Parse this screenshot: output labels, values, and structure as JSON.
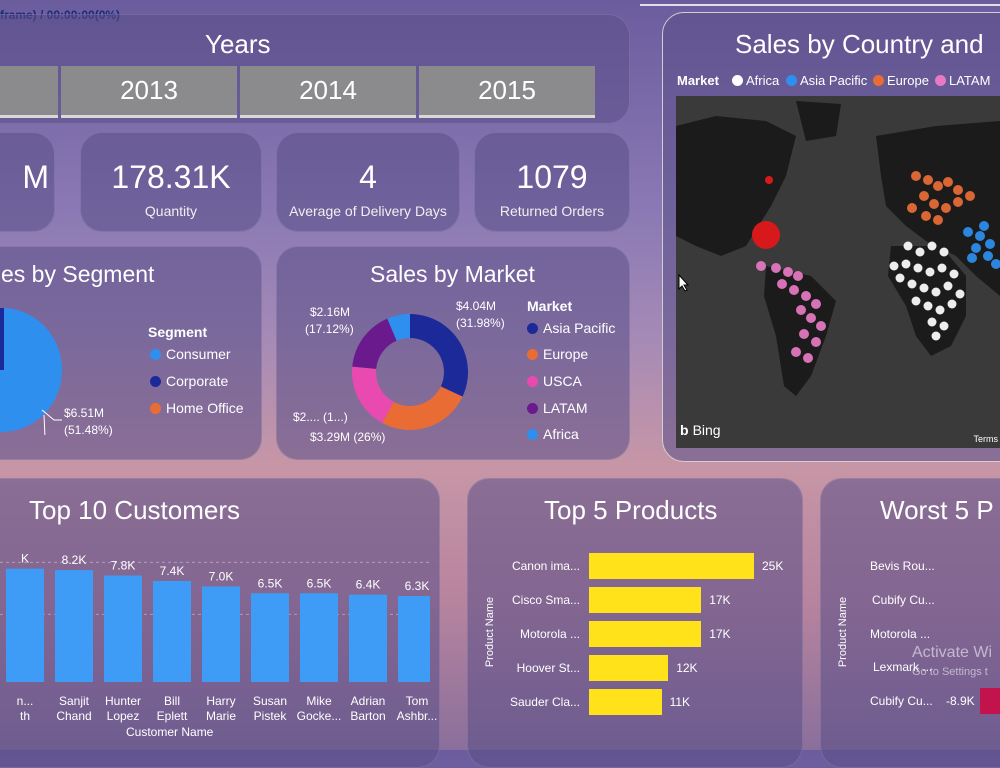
{
  "header": {
    "status_text": "frame) / 00:00:00(0%)"
  },
  "years": {
    "title": "Years",
    "items": [
      "2013",
      "2014",
      "2015"
    ]
  },
  "kpis": [
    {
      "value": "M",
      "label": ""
    },
    {
      "value": "178.31K",
      "label": "Quantity"
    },
    {
      "value": "4",
      "label": "Average of Delivery Days"
    },
    {
      "value": "1079",
      "label": "Returned Orders"
    }
  ],
  "segment": {
    "title": "es by Segment",
    "legend_title": "Segment",
    "items": [
      "Consumer",
      "Corporate",
      "Home Office"
    ],
    "colors": [
      "#2f8fef",
      "#1c2a99",
      "#e96c35"
    ],
    "data_label": "$6.51M",
    "data_pct": "(51.48%)"
  },
  "market": {
    "title": "Sales by Market",
    "legend_title": "Market",
    "items": [
      "Asia Pacific",
      "Europe",
      "USCA",
      "LATAM",
      "Africa"
    ],
    "colors": [
      "#1c2a99",
      "#e96c35",
      "#e84ab0",
      "#6a1a8c",
      "#2f8fef"
    ],
    "labels": [
      {
        "value": "$4.04M",
        "pct": "(31.98%)"
      },
      {
        "value": "$2.16M",
        "pct": "(17.12%)"
      },
      {
        "value": "$2.... (1...)",
        "pct": ""
      },
      {
        "value": "$3.29M (26%)",
        "pct": ""
      }
    ]
  },
  "map": {
    "title": "Sales by Country and",
    "legend_title": "Market",
    "items": [
      "Africa",
      "Asia Pacific",
      "Europe",
      "LATAM"
    ],
    "colors": [
      "#ffffff",
      "#2f8fef",
      "#e96c35",
      "#e87ac4"
    ],
    "bing_label": "Bing",
    "terms_label": "Terms"
  },
  "customers": {
    "title": "Top 10 Customers",
    "axis_title": "Customer Name",
    "bar_color": "#3e9cf6"
  },
  "products": {
    "title": "Top 5 Products",
    "axis_title": "Product Name",
    "bar_color": "#ffe21a"
  },
  "worst": {
    "title": "Worst 5 P",
    "axis_title": "Product Name",
    "names": [
      "Bevis Rou...",
      "Cubify Cu...",
      "Motorola ...",
      "Lexmark ...",
      "Cubify Cu..."
    ],
    "last_value": "-8.9K",
    "bar_color": "#c2134c"
  },
  "watermark": {
    "line1": "Activate Wi",
    "line2": "Go to Settings t"
  },
  "chart_data": [
    {
      "type": "bar",
      "title": "Top 10 Customers",
      "xlabel": "Customer Name",
      "categories": [
        "",
        "Sanjit Chand",
        "Hunter Lopez",
        "Bill Eplett",
        "Harry Marie",
        "Susan Pistek",
        "Mike Gocke...",
        "Adrian Barton",
        "Tom Ashbr..."
      ],
      "category_lines": [
        [
          "n...",
          "th"
        ],
        [
          "Sanjit",
          "Chand"
        ],
        [
          "Hunter",
          "Lopez"
        ],
        [
          "Bill",
          "Eplett"
        ],
        [
          "Harry",
          "Marie"
        ],
        [
          "Susan",
          "Pistek"
        ],
        [
          "Mike",
          "Gocke..."
        ],
        [
          "Adrian",
          "Barton"
        ],
        [
          "Tom",
          "Ashbr..."
        ]
      ],
      "values": [
        8.3,
        8.2,
        7.8,
        7.4,
        7.0,
        6.5,
        6.5,
        6.4,
        6.3
      ],
      "value_labels": [
        "K",
        "8.2K",
        "7.8K",
        "7.4K",
        "7.0K",
        "6.5K",
        "6.5K",
        "6.4K",
        "6.3K"
      ],
      "ylim": [
        0,
        10
      ]
    },
    {
      "type": "bar",
      "orientation": "horizontal",
      "title": "Top 5 Products",
      "ylabel": "Product Name",
      "categories": [
        "Canon ima...",
        "Cisco Sma...",
        "Motorola ...",
        "Hoover St...",
        "Sauder Cla..."
      ],
      "values": [
        25,
        17,
        17,
        12,
        11
      ],
      "value_labels": [
        "25K",
        "17K",
        "17K",
        "12K",
        "11K"
      ]
    },
    {
      "type": "pie",
      "title": "Sales by Market",
      "categories": [
        "Asia Pacific",
        "Europe",
        "USCA",
        "LATAM",
        "Africa"
      ],
      "values": [
        31.98,
        26,
        18.5,
        17.12,
        6.4
      ]
    }
  ]
}
